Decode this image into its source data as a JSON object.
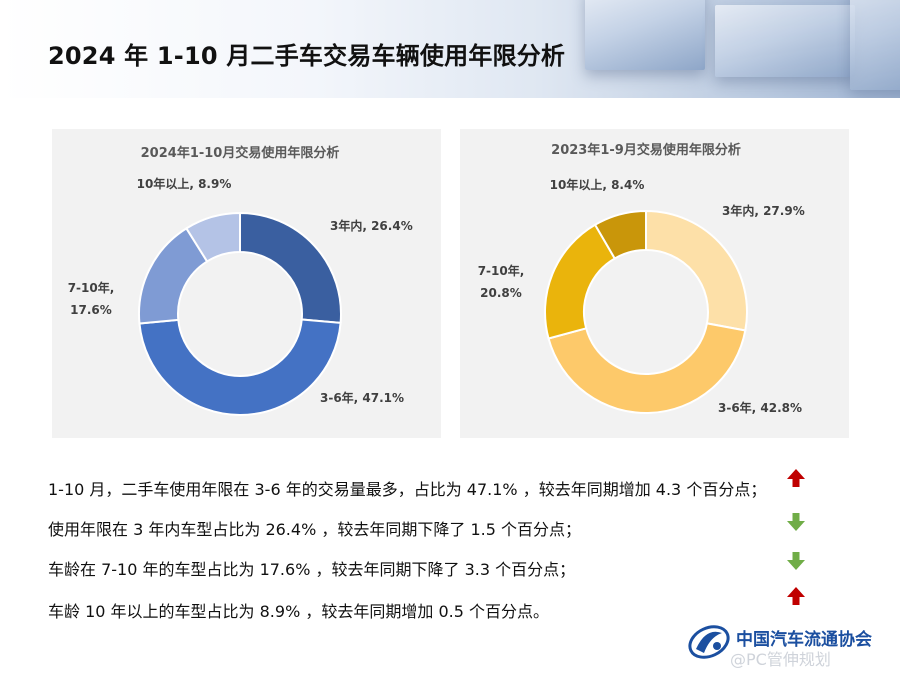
{
  "title": "2024 年 1-10 月二手车交易车辆使用年限分析",
  "chart_data": [
    {
      "type": "pie",
      "donut": true,
      "title": "2024年1-10月交易使用年限分析",
      "slices": [
        {
          "label": "3年内",
          "value": 26.4,
          "label_text": "3年内, 26.4%",
          "color": "#3a5fa0"
        },
        {
          "label": "3-6年",
          "value": 47.1,
          "label_text": "3-6年, 47.1%",
          "color": "#4472c4"
        },
        {
          "label": "7-10年",
          "value": 17.6,
          "label_text": "7-10年, 17.6%",
          "color": "#7f9bd4"
        },
        {
          "label": "10年以上",
          "value": 8.9,
          "label_text": "10年以上, 8.9%",
          "color": "#b4c3e6"
        }
      ]
    },
    {
      "type": "pie",
      "donut": true,
      "title": "2023年1-9月交易使用年限分析",
      "slices": [
        {
          "label": "3年内",
          "value": 27.9,
          "label_text": "3年内, 27.9%",
          "color": "#fde0a8"
        },
        {
          "label": "3-6年",
          "value": 42.8,
          "label_text": "3-6年, 42.8%",
          "color": "#fdc96a"
        },
        {
          "label": "7-10年",
          "value": 20.8,
          "label_text": "7-10年, 20.8%",
          "color": "#eab40c"
        },
        {
          "label": "10年以上",
          "value": 8.4,
          "label_text": "10年以上, 8.4%",
          "color": "#c9960a"
        }
      ]
    }
  ],
  "notes": [
    {
      "text": "1-10 月，二手车使用年限在 3-6 年的交易量最多，占比为 47.1% ，较去年同期增加 4.3 个百分点；",
      "trend": "up"
    },
    {
      "text": "使用年限在 3 年内车型占比为 26.4% ，较去年同期下降了 1.5 个百分点；",
      "trend": "down"
    },
    {
      "text": "车龄在 7-10 年的车型占比为 17.6% ，较去年同期下降了 3.3 个百分点；",
      "trend": "down"
    },
    {
      "text": "车龄 10 年以上的车型占比为 8.9% ，较去年同期增加 0.5 个百分点。",
      "trend": "up"
    }
  ],
  "colors": {
    "up": "#c00000",
    "down": "#70ad47"
  },
  "icons": {
    "up": "up-arrow-icon",
    "down": "down-arrow-icon"
  },
  "logo": {
    "text": "中国汽车流通协会",
    "icon": "association-logo-icon"
  },
  "watermark": "@PC管伸规划"
}
